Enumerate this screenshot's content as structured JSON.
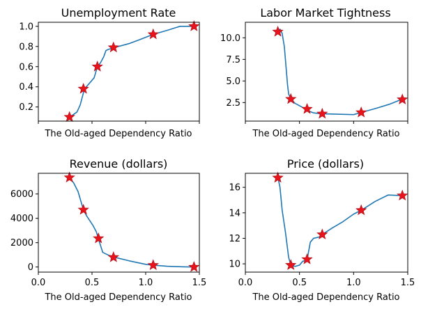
{
  "chart_data": [
    {
      "type": "line",
      "title": "Unemployment Rate",
      "xlabel": "The Old-aged Dependency Ratio",
      "ylabel": "",
      "xlim": [
        0,
        1.5
      ],
      "ylim": [
        0.06,
        1.04
      ],
      "show_x_tick_labels": false,
      "x_ticks": [
        0,
        0.5,
        1.0,
        1.5
      ],
      "y_ticks": [
        0.2,
        0.4,
        0.6,
        0.8,
        1.0
      ],
      "y_tick_labels": [
        "0.2",
        "0.4",
        "0.6",
        "0.8",
        "1.0"
      ],
      "line": {
        "x": [
          0.29,
          0.32,
          0.36,
          0.39,
          0.41,
          0.43,
          0.48,
          0.52,
          0.55,
          0.58,
          0.61,
          0.63,
          0.65,
          0.68,
          0.71,
          0.85,
          0.95,
          1.07,
          1.2,
          1.32,
          1.45
        ],
        "y": [
          0.1,
          0.12,
          0.15,
          0.22,
          0.3,
          0.38,
          0.44,
          0.49,
          0.6,
          0.64,
          0.7,
          0.76,
          0.77,
          0.78,
          0.79,
          0.83,
          0.87,
          0.92,
          0.96,
          1.0,
          1.0
        ]
      },
      "markers": {
        "x": [
          0.29,
          0.42,
          0.55,
          0.7,
          1.07,
          1.45
        ],
        "y": [
          0.1,
          0.38,
          0.6,
          0.79,
          0.92,
          1.0
        ]
      }
    },
    {
      "type": "line",
      "title": "Labor Market Tightness",
      "xlabel": "The Old-aged Dependency Ratio",
      "ylabel": "",
      "xlim": [
        0,
        1.5
      ],
      "ylim": [
        0.35,
        11.8
      ],
      "show_x_tick_labels": false,
      "x_ticks": [
        0,
        0.5,
        1.0,
        1.5
      ],
      "y_ticks": [
        2.5,
        5.0,
        7.5,
        10.0
      ],
      "y_tick_labels": [
        "2.5",
        "5.0",
        "7.5",
        "10.0"
      ],
      "line": {
        "x": [
          0.3,
          0.32,
          0.34,
          0.36,
          0.37,
          0.38,
          0.39,
          0.4,
          0.42,
          0.46,
          0.52,
          0.57,
          0.63,
          0.7,
          0.85,
          1.0,
          1.07,
          1.2,
          1.33,
          1.45
        ],
        "y": [
          10.7,
          11.0,
          10.5,
          9.0,
          7.5,
          6.0,
          4.5,
          3.5,
          2.9,
          2.4,
          2.0,
          1.6,
          1.3,
          1.2,
          1.15,
          1.1,
          1.35,
          1.8,
          2.3,
          2.9
        ]
      },
      "markers": {
        "x": [
          0.3,
          0.42,
          0.57,
          0.71,
          1.07,
          1.45
        ],
        "y": [
          10.7,
          2.9,
          1.75,
          1.2,
          1.35,
          2.85
        ]
      }
    },
    {
      "type": "line",
      "title": "Revenue (dollars)",
      "xlabel": "The Old-aged Dependency Ratio",
      "ylabel": "",
      "xlim": [
        0,
        1.5
      ],
      "ylim": [
        -420,
        7700
      ],
      "show_x_tick_labels": true,
      "x_ticks": [
        0,
        0.5,
        1.0,
        1.5
      ],
      "x_tick_labels": [
        "0.0",
        "0.5",
        "1.0",
        "1.5"
      ],
      "y_ticks": [
        0,
        2000,
        4000,
        6000
      ],
      "y_tick_labels": [
        "0",
        "2000",
        "4000",
        "6000"
      ],
      "line": {
        "x": [
          0.29,
          0.33,
          0.37,
          0.4,
          0.42,
          0.45,
          0.48,
          0.51,
          0.54,
          0.56,
          0.6,
          0.66,
          0.71,
          0.85,
          1.0,
          1.07,
          1.2,
          1.33,
          1.45
        ],
        "y": [
          7350,
          6900,
          6200,
          5300,
          4700,
          4200,
          3800,
          3400,
          2900,
          2300,
          1200,
          950,
          800,
          500,
          220,
          150,
          60,
          20,
          0
        ]
      },
      "markers": {
        "x": [
          0.29,
          0.42,
          0.56,
          0.7,
          1.07,
          1.45
        ],
        "y": [
          7350,
          4700,
          2350,
          800,
          150,
          0
        ]
      }
    },
    {
      "type": "line",
      "title": "Price (dollars)",
      "xlabel": "The Old-aged Dependency Ratio",
      "ylabel": "",
      "xlim": [
        0,
        1.5
      ],
      "ylim": [
        9.35,
        17.1
      ],
      "show_x_tick_labels": true,
      "x_ticks": [
        0,
        0.5,
        1.0,
        1.5
      ],
      "x_tick_labels": [
        "0.0",
        "0.5",
        "1.0",
        "1.5"
      ],
      "y_ticks": [
        10,
        12,
        14,
        16
      ],
      "y_tick_labels": [
        "10",
        "12",
        "14",
        "16"
      ],
      "line": {
        "x": [
          0.3,
          0.32,
          0.34,
          0.37,
          0.4,
          0.42,
          0.46,
          0.5,
          0.53,
          0.57,
          0.6,
          0.63,
          0.68,
          0.71,
          0.8,
          0.9,
          1.0,
          1.07,
          1.2,
          1.32,
          1.45
        ],
        "y": [
          16.8,
          16.0,
          14.2,
          12.5,
          10.5,
          9.9,
          9.8,
          9.9,
          10.2,
          10.3,
          11.7,
          12.0,
          12.1,
          12.3,
          12.8,
          13.3,
          13.9,
          14.2,
          14.9,
          15.4,
          15.35
        ]
      },
      "markers": {
        "x": [
          0.3,
          0.42,
          0.57,
          0.71,
          1.07,
          1.45
        ],
        "y": [
          16.75,
          9.9,
          10.35,
          12.3,
          14.2,
          15.35
        ]
      }
    }
  ],
  "style": {
    "line_color": "#1f77b4",
    "marker_fill": "#e8131b",
    "marker_edge": "#b5121b"
  }
}
